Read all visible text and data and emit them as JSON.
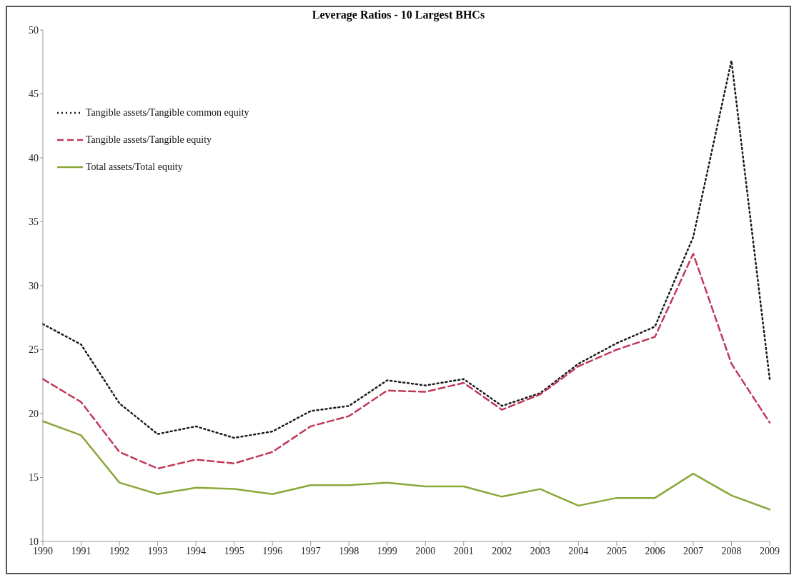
{
  "chart_data": {
    "type": "line",
    "title": "Leverage Ratios - 10 Largest BHCs",
    "categories": [
      "1990",
      "1991",
      "1992",
      "1993",
      "1994",
      "1995",
      "1996",
      "1997",
      "1998",
      "1999",
      "2000",
      "2001",
      "2002",
      "2003",
      "2004",
      "2005",
      "2006",
      "2007",
      "2008",
      "2009"
    ],
    "series": [
      {
        "name": "Tangible assets/Tangible common equity",
        "color": "#1a1a1a",
        "line_style": "dotted",
        "values": [
          27.0,
          25.4,
          20.8,
          18.4,
          19.0,
          18.1,
          18.6,
          20.2,
          20.6,
          22.6,
          22.2,
          22.7,
          20.6,
          21.6,
          23.9,
          25.5,
          26.8,
          33.8,
          47.6,
          22.7
        ]
      },
      {
        "name": "Tangible assets/Tangible equity",
        "color": "#c0395a",
        "line_style": "dashed",
        "values": [
          22.7,
          20.9,
          17.0,
          15.7,
          16.4,
          16.1,
          17.0,
          19.0,
          19.8,
          21.8,
          21.7,
          22.4,
          20.3,
          21.5,
          23.7,
          25.0,
          26.0,
          32.5,
          23.9,
          19.3
        ]
      },
      {
        "name": "Total assets/Total equity",
        "color": "#8aa83a",
        "line_style": "solid",
        "values": [
          19.4,
          18.3,
          14.6,
          13.7,
          14.2,
          14.1,
          13.7,
          14.4,
          14.4,
          14.6,
          14.3,
          14.3,
          13.5,
          14.1,
          12.8,
          13.4,
          13.4,
          15.3,
          13.6,
          12.5
        ]
      }
    ],
    "ylim": [
      10,
      50
    ],
    "yticks": [
      10,
      15,
      20,
      25,
      30,
      35,
      40,
      45,
      50
    ],
    "grid": false,
    "legend": "top left",
    "marker": "none"
  }
}
